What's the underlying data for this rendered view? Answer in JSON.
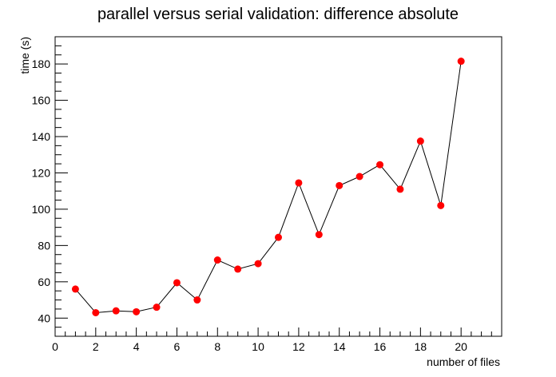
{
  "chart_data": {
    "type": "line",
    "title": "parallel versus serial validation: difference absolute",
    "xlabel": "number of files",
    "ylabel": "time (s)",
    "xlim": [
      0,
      22
    ],
    "ylim": [
      30,
      195
    ],
    "x_ticks": [
      0,
      2,
      4,
      6,
      8,
      10,
      12,
      14,
      16,
      18,
      20
    ],
    "y_ticks": [
      40,
      60,
      80,
      100,
      120,
      140,
      160,
      180
    ],
    "grid": false,
    "legend": "none",
    "marker_color": "#ff0000",
    "line_color": "#000000",
    "series": [
      {
        "x": [
          1,
          2,
          3,
          4,
          5,
          6,
          7,
          8,
          9,
          10,
          11,
          12,
          13,
          14,
          15,
          16,
          17,
          18,
          19,
          20
        ],
        "y": [
          56,
          43,
          44,
          43.5,
          46,
          59.5,
          50,
          72,
          67,
          70,
          84.5,
          114.5,
          86,
          113,
          118,
          124.5,
          111,
          137.5,
          102,
          181.5
        ]
      }
    ]
  }
}
